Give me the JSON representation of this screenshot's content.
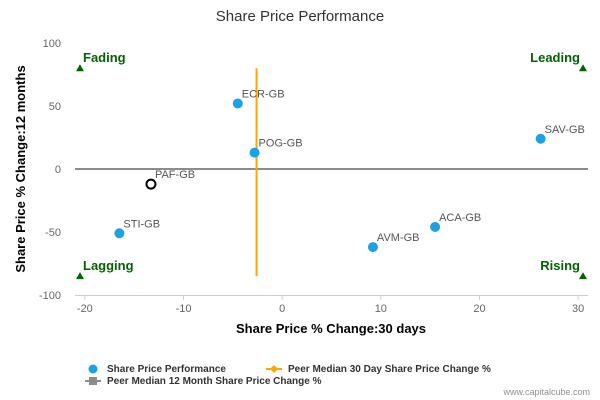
{
  "chart_data": {
    "type": "scatter",
    "title": "Share Price Performance",
    "xlabel": "Share Price % Change:30 days",
    "ylabel": "Share Price % Change:12 months",
    "xlim": [
      -21,
      31
    ],
    "ylim": [
      -100,
      100
    ],
    "xticks": [
      -20,
      -10,
      0,
      10,
      20,
      30
    ],
    "yticks": [
      -100,
      -50,
      0,
      50,
      100
    ],
    "points": [
      {
        "label": "ECR-GB",
        "x": -4.5,
        "y": 52,
        "highlight": false
      },
      {
        "label": "POG-GB",
        "x": -2.8,
        "y": 13,
        "highlight": false
      },
      {
        "label": "SAV-GB",
        "x": 26.2,
        "y": 24,
        "highlight": false
      },
      {
        "label": "PAF-GB",
        "x": -13.3,
        "y": -12,
        "highlight": true
      },
      {
        "label": "STI-GB",
        "x": -16.5,
        "y": -51,
        "highlight": false
      },
      {
        "label": "AVM-GB",
        "x": 9.2,
        "y": -62,
        "highlight": false
      },
      {
        "label": "ACA-GB",
        "x": 15.5,
        "y": -46,
        "highlight": false
      }
    ],
    "peer_median_30d": -2.6,
    "peer_median_30d_range": [
      -85,
      80
    ],
    "peer_median_12m": 0,
    "quadrants": {
      "top_left": "Fading",
      "top_right": "Leading",
      "bottom_left": "Lagging",
      "bottom_right": "Rising"
    },
    "quadrant_marker_y": {
      "top": 80,
      "bottom": -85
    },
    "legend": {
      "position": "bottom-left",
      "series": [
        {
          "name": "Share Price Performance",
          "kind": "dot"
        },
        {
          "name": "Peer Median 30 Day Share Price Change %",
          "kind": "orange-line"
        },
        {
          "name": "Peer Median 12 Month Share Price Change %",
          "kind": "grey-line"
        }
      ]
    },
    "grid": false
  },
  "credit": "www.capitalcube.com",
  "colors": {
    "point": "#1da1e6",
    "highlight_stroke": "#000000",
    "peer_30d": "#ffa500",
    "peer_12m": "#8c8c8c",
    "quadrant": "#006400",
    "axis": "#c0d0e0"
  }
}
